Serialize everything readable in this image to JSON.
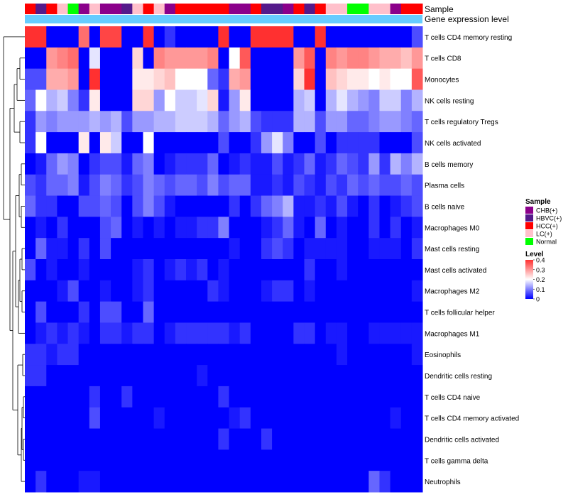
{
  "chart_data": {
    "type": "heatmap",
    "title": "",
    "annotation_rows": [
      "Sample",
      "Gene expression level"
    ],
    "rows": [
      "T cells CD4 memory resting",
      "T cells CD8",
      "Monocytes",
      "NK cells resting",
      "T cells regulatory  Tregs",
      "NK cells activated",
      "B cells memory",
      "Plasma cells",
      "B cells naive",
      "Macrophages M0",
      "Mast cells resting",
      "Mast cells activated",
      "Macrophages M2",
      "T cells follicular helper",
      "Macrophages M1",
      "Eosinophils",
      "Dendritic cells resting",
      "T cells CD4 naive",
      "T cells CD4 memory activated",
      "Dendritic cells activated",
      "T cells gamma delta",
      "Neutrophils"
    ],
    "sample_groups": [
      "HCC(+)",
      "HBVC(+)",
      "HCC(+)",
      "LC(+)",
      "Normal",
      "CHB(+)",
      "LC(+)",
      "CHB(+)",
      "CHB(+)",
      "HBVC(+)",
      "LC(+)",
      "HCC(+)",
      "LC(+)",
      "CHB(+)",
      "HCC(+)",
      "HCC(+)",
      "HCC(+)",
      "HCC(+)",
      "HCC(+)",
      "CHB(+)",
      "CHB(+)",
      "HCC(+)",
      "HBVC(+)",
      "HBVC(+)",
      "CHB(+)",
      "HCC(+)",
      "HBVC(+)",
      "HCC(+)",
      "LC(+)",
      "LC(+)",
      "Normal",
      "Normal",
      "LC(+)",
      "LC(+)",
      "CHB(+)",
      "HCC(+)",
      "HCC(+)"
    ],
    "values": [
      [
        0.4,
        0.4,
        0.0,
        0.0,
        0.0,
        0.34,
        0.0,
        0.38,
        0.38,
        0.0,
        0.0,
        0.4,
        0.0,
        0.04,
        0.0,
        0.0,
        0.0,
        0.0,
        0.4,
        0.0,
        0.0,
        0.4,
        0.4,
        0.4,
        0.4,
        0.0,
        0.0,
        0.4,
        0.0,
        0.0,
        0.0,
        0.0,
        0.0,
        0.0,
        0.0,
        0.0,
        0.06
      ],
      [
        0.0,
        0.0,
        0.3,
        0.32,
        0.34,
        0.0,
        0.18,
        0.0,
        0.0,
        0.0,
        0.24,
        0.0,
        0.32,
        0.3,
        0.3,
        0.3,
        0.3,
        0.32,
        0.0,
        0.2,
        0.36,
        0.0,
        0.0,
        0.0,
        0.0,
        0.3,
        0.36,
        0.0,
        0.32,
        0.3,
        0.32,
        0.32,
        0.3,
        0.28,
        0.28,
        0.26,
        0.3
      ],
      [
        0.06,
        0.06,
        0.28,
        0.28,
        0.3,
        0.0,
        0.4,
        0.0,
        0.0,
        0.0,
        0.22,
        0.22,
        0.24,
        0.26,
        0.2,
        0.2,
        0.2,
        0.08,
        0.04,
        0.28,
        0.3,
        0.0,
        0.0,
        0.0,
        0.0,
        0.24,
        0.4,
        0.0,
        0.26,
        0.24,
        0.22,
        0.22,
        0.2,
        0.22,
        0.2,
        0.2,
        0.36
      ],
      [
        0.08,
        0.2,
        0.14,
        0.16,
        0.1,
        0.04,
        0.22,
        0.0,
        0.0,
        0.0,
        0.24,
        0.24,
        0.12,
        0.2,
        0.16,
        0.16,
        0.18,
        0.24,
        0.02,
        0.12,
        0.22,
        0.0,
        0.0,
        0.0,
        0.0,
        0.14,
        0.16,
        0.0,
        0.14,
        0.18,
        0.14,
        0.12,
        0.1,
        0.16,
        0.16,
        0.1,
        0.14
      ],
      [
        0.04,
        0.12,
        0.1,
        0.12,
        0.12,
        0.12,
        0.14,
        0.12,
        0.14,
        0.06,
        0.12,
        0.12,
        0.14,
        0.14,
        0.16,
        0.16,
        0.16,
        0.14,
        0.08,
        0.12,
        0.14,
        0.06,
        0.04,
        0.04,
        0.04,
        0.14,
        0.14,
        0.06,
        0.12,
        0.12,
        0.08,
        0.08,
        0.1,
        0.12,
        0.12,
        0.1,
        0.08
      ],
      [
        0.04,
        0.2,
        0.0,
        0.0,
        0.0,
        0.22,
        0.0,
        0.22,
        0.16,
        0.0,
        0.0,
        0.2,
        0.0,
        0.0,
        0.0,
        0.0,
        0.0,
        0.0,
        0.06,
        0.0,
        0.0,
        0.04,
        0.12,
        0.18,
        0.1,
        0.0,
        0.0,
        0.06,
        0.0,
        0.04,
        0.04,
        0.04,
        0.04,
        0.0,
        0.0,
        0.0,
        0.06
      ],
      [
        0.0,
        0.02,
        0.08,
        0.12,
        0.1,
        0.0,
        0.04,
        0.06,
        0.06,
        0.02,
        0.08,
        0.1,
        0.0,
        0.02,
        0.04,
        0.04,
        0.04,
        0.08,
        0.0,
        0.02,
        0.04,
        0.02,
        0.02,
        0.06,
        0.02,
        0.04,
        0.08,
        0.02,
        0.04,
        0.08,
        0.06,
        0.04,
        0.12,
        0.04,
        0.14,
        0.1,
        0.14
      ],
      [
        0.06,
        0.04,
        0.08,
        0.08,
        0.1,
        0.02,
        0.06,
        0.1,
        0.08,
        0.04,
        0.06,
        0.1,
        0.08,
        0.06,
        0.08,
        0.08,
        0.06,
        0.1,
        0.06,
        0.08,
        0.08,
        0.02,
        0.02,
        0.04,
        0.02,
        0.06,
        0.04,
        0.02,
        0.06,
        0.04,
        0.08,
        0.06,
        0.08,
        0.06,
        0.06,
        0.08,
        0.06
      ],
      [
        0.08,
        0.04,
        0.04,
        0.0,
        0.0,
        0.06,
        0.06,
        0.08,
        0.06,
        0.0,
        0.06,
        0.1,
        0.06,
        0.02,
        0.0,
        0.0,
        0.0,
        0.0,
        0.0,
        0.04,
        0.0,
        0.04,
        0.08,
        0.1,
        0.14,
        0.02,
        0.02,
        0.04,
        0.02,
        0.06,
        0.02,
        0.0,
        0.04,
        0.0,
        0.02,
        0.04,
        0.06
      ],
      [
        0.0,
        0.02,
        0.0,
        0.04,
        0.0,
        0.0,
        0.0,
        0.06,
        0.08,
        0.0,
        0.02,
        0.0,
        0.02,
        0.0,
        0.02,
        0.02,
        0.04,
        0.04,
        0.1,
        0.0,
        0.0,
        0.0,
        0.02,
        0.04,
        0.08,
        0.02,
        0.0,
        0.08,
        0.0,
        0.02,
        0.0,
        0.0,
        0.04,
        0.0,
        0.04,
        0.0,
        0.02
      ],
      [
        0.0,
        0.08,
        0.02,
        0.02,
        0.0,
        0.04,
        0.0,
        0.06,
        0.0,
        0.0,
        0.0,
        0.0,
        0.0,
        0.0,
        0.0,
        0.0,
        0.0,
        0.0,
        0.0,
        0.02,
        0.0,
        0.0,
        0.04,
        0.06,
        0.04,
        0.0,
        0.02,
        0.02,
        0.02,
        0.02,
        0.0,
        0.0,
        0.02,
        0.02,
        0.02,
        0.0,
        0.04
      ],
      [
        0.06,
        0.0,
        0.02,
        0.0,
        0.0,
        0.02,
        0.0,
        0.0,
        0.0,
        0.0,
        0.02,
        0.04,
        0.0,
        0.02,
        0.04,
        0.02,
        0.04,
        0.0,
        0.02,
        0.0,
        0.0,
        0.0,
        0.0,
        0.0,
        0.0,
        0.0,
        0.04,
        0.0,
        0.0,
        0.02,
        0.0,
        0.0,
        0.0,
        0.0,
        0.0,
        0.0,
        0.0
      ],
      [
        0.0,
        0.0,
        0.0,
        0.02,
        0.06,
        0.0,
        0.0,
        0.02,
        0.0,
        0.0,
        0.02,
        0.04,
        0.0,
        0.0,
        0.0,
        0.0,
        0.0,
        0.04,
        0.02,
        0.0,
        0.0,
        0.0,
        0.02,
        0.04,
        0.04,
        0.0,
        0.02,
        0.0,
        0.0,
        0.0,
        0.0,
        0.0,
        0.0,
        0.0,
        0.0,
        0.0,
        0.02
      ],
      [
        0.0,
        0.06,
        0.0,
        0.0,
        0.0,
        0.04,
        0.0,
        0.06,
        0.06,
        0.0,
        0.0,
        0.08,
        0.0,
        0.0,
        0.0,
        0.0,
        0.0,
        0.0,
        0.0,
        0.0,
        0.0,
        0.0,
        0.0,
        0.0,
        0.0,
        0.0,
        0.0,
        0.0,
        0.0,
        0.0,
        0.0,
        0.0,
        0.0,
        0.0,
        0.0,
        0.0,
        0.0
      ],
      [
        0.0,
        0.02,
        0.04,
        0.02,
        0.04,
        0.02,
        0.0,
        0.04,
        0.04,
        0.02,
        0.04,
        0.04,
        0.0,
        0.02,
        0.04,
        0.04,
        0.04,
        0.04,
        0.04,
        0.02,
        0.04,
        0.0,
        0.0,
        0.0,
        0.0,
        0.04,
        0.04,
        0.0,
        0.02,
        0.02,
        0.0,
        0.0,
        0.02,
        0.02,
        0.02,
        0.02,
        0.02
      ],
      [
        0.04,
        0.04,
        0.02,
        0.04,
        0.04,
        0.0,
        0.0,
        0.0,
        0.0,
        0.0,
        0.0,
        0.0,
        0.0,
        0.0,
        0.0,
        0.0,
        0.0,
        0.0,
        0.0,
        0.0,
        0.0,
        0.0,
        0.0,
        0.0,
        0.0,
        0.0,
        0.0,
        0.0,
        0.0,
        0.02,
        0.0,
        0.0,
        0.0,
        0.0,
        0.0,
        0.0,
        0.02
      ],
      [
        0.04,
        0.04,
        0.0,
        0.0,
        0.0,
        0.0,
        0.0,
        0.0,
        0.0,
        0.0,
        0.0,
        0.0,
        0.0,
        0.0,
        0.0,
        0.0,
        0.02,
        0.0,
        0.0,
        0.0,
        0.0,
        0.0,
        0.0,
        0.0,
        0.0,
        0.0,
        0.0,
        0.0,
        0.0,
        0.0,
        0.0,
        0.0,
        0.0,
        0.0,
        0.0,
        0.0,
        0.0
      ],
      [
        0.0,
        0.0,
        0.0,
        0.0,
        0.0,
        0.0,
        0.04,
        0.0,
        0.0,
        0.04,
        0.0,
        0.0,
        0.0,
        0.0,
        0.0,
        0.0,
        0.0,
        0.0,
        0.04,
        0.0,
        0.0,
        0.0,
        0.0,
        0.0,
        0.0,
        0.0,
        0.0,
        0.0,
        0.0,
        0.0,
        0.0,
        0.0,
        0.0,
        0.0,
        0.0,
        0.0,
        0.0
      ],
      [
        0.0,
        0.0,
        0.0,
        0.0,
        0.0,
        0.0,
        0.06,
        0.0,
        0.0,
        0.0,
        0.0,
        0.0,
        0.02,
        0.0,
        0.0,
        0.0,
        0.0,
        0.0,
        0.0,
        0.02,
        0.04,
        0.0,
        0.0,
        0.0,
        0.0,
        0.0,
        0.0,
        0.0,
        0.0,
        0.0,
        0.0,
        0.0,
        0.0,
        0.0,
        0.02,
        0.0,
        0.0
      ],
      [
        0.0,
        0.0,
        0.0,
        0.0,
        0.0,
        0.0,
        0.0,
        0.0,
        0.0,
        0.0,
        0.0,
        0.0,
        0.0,
        0.0,
        0.0,
        0.0,
        0.0,
        0.0,
        0.04,
        0.0,
        0.0,
        0.0,
        0.04,
        0.0,
        0.0,
        0.0,
        0.0,
        0.0,
        0.0,
        0.0,
        0.0,
        0.0,
        0.0,
        0.0,
        0.0,
        0.0,
        0.0
      ],
      [
        0.0,
        0.0,
        0.0,
        0.0,
        0.0,
        0.0,
        0.0,
        0.0,
        0.0,
        0.0,
        0.0,
        0.0,
        0.0,
        0.0,
        0.0,
        0.0,
        0.0,
        0.0,
        0.0,
        0.0,
        0.0,
        0.0,
        0.0,
        0.0,
        0.0,
        0.0,
        0.0,
        0.0,
        0.0,
        0.0,
        0.0,
        0.0,
        0.0,
        0.0,
        0.0,
        0.0,
        0.0
      ],
      [
        0.0,
        0.04,
        0.0,
        0.0,
        0.0,
        0.02,
        0.02,
        0.0,
        0.0,
        0.0,
        0.0,
        0.0,
        0.0,
        0.0,
        0.0,
        0.0,
        0.0,
        0.0,
        0.0,
        0.0,
        0.0,
        0.0,
        0.0,
        0.0,
        0.0,
        0.0,
        0.0,
        0.0,
        0.0,
        0.0,
        0.0,
        0.0,
        0.08,
        0.04,
        0.0,
        0.0,
        0.0
      ]
    ],
    "color_scale": {
      "min": 0,
      "max": 0.4,
      "colors": [
        "#0000ff",
        "#ffffff",
        "#ff3030"
      ]
    },
    "legends": {
      "sample": {
        "title": "Sample",
        "items": [
          {
            "label": "CHB(+)",
            "color": "#8b008b"
          },
          {
            "label": "HBVC(+)",
            "color": "#551a8b"
          },
          {
            "label": "HCC(+)",
            "color": "#ff0000"
          },
          {
            "label": "LC(+)",
            "color": "#ffc0cb"
          },
          {
            "label": "Normal",
            "color": "#00ff00"
          }
        ]
      },
      "level": {
        "title": "Level",
        "ticks": [
          0.4,
          0.3,
          0.2,
          0.1,
          0
        ]
      }
    },
    "expression_bar_color": "#66ccff",
    "dendrogram": true
  }
}
